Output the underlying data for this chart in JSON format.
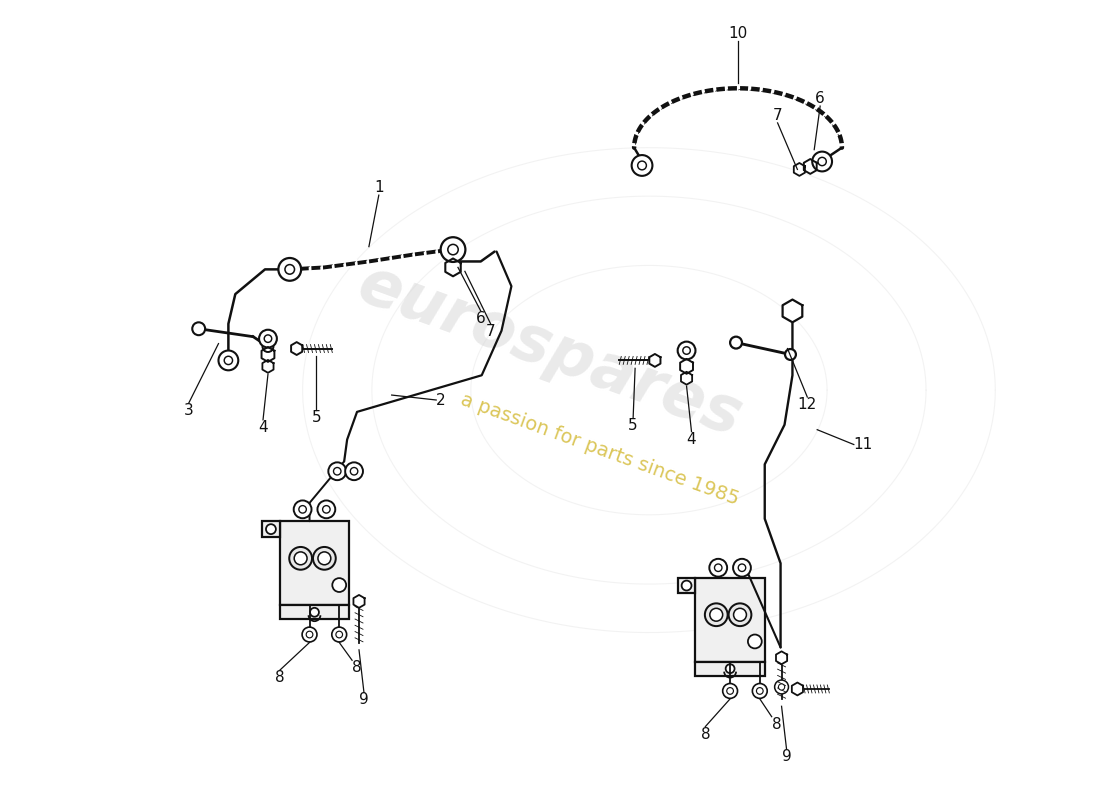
{
  "bg": "#ffffff",
  "lc": "#111111",
  "lw": 1.8,
  "watermark1": "eurospares",
  "watermark2": "a passion for parts since 1985",
  "wm_col1": "#cccccc",
  "wm_col2": "#ccaa00",
  "figw": 11.0,
  "figh": 8.0,
  "dpi": 100,
  "xlim": [
    0,
    11
  ],
  "ylim": [
    0,
    8
  ]
}
